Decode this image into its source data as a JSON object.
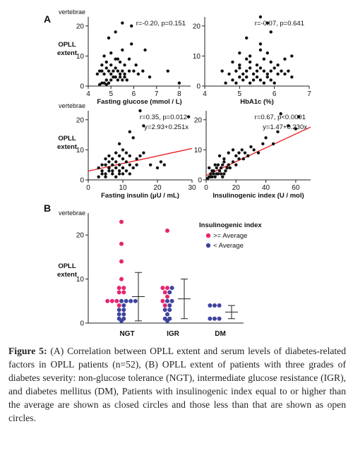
{
  "panel_a_label": "A",
  "panel_b_label": "B",
  "caption": {
    "label": "Figure 5:",
    "text": " (A) Correlation between OPLL extent and serum levels of diabetes-related factors in OPLL patients (n=52), (B) OPLL extent of patients with three grades of diabetes severity: non-glucose tolerance (NGT), intermediate glucose resistance (IGR), and diabetes mellitus (DM), Patients with insulinogenic index equal to or higher than the average are shown as closed circles and those less than that are shown as open circles."
  },
  "colors": {
    "points": "#111111",
    "fit": "#e8262a",
    "pink": "#e8246f",
    "blue": "#3f44a0",
    "axis": "#222222"
  },
  "chart_data": [
    {
      "id": "glucose",
      "type": "scatter",
      "xlabel": "Fasting glucose (mmol / L)",
      "ylabel": "OPLL extent",
      "yunit": "vertebrae",
      "stat": "r=-0.20, p=0.151",
      "xlim": [
        4,
        8.5
      ],
      "ylim": [
        0,
        23
      ],
      "xticks": [
        4,
        5,
        6,
        7,
        8
      ],
      "yticks": [
        0,
        10,
        20
      ],
      "x": [
        4.5,
        4.6,
        4.7,
        4.8,
        4.8,
        4.9,
        5.0,
        5.1,
        5.2,
        5.3,
        5.4,
        5.5,
        5.6,
        5.7,
        4.4,
        4.5,
        4.6,
        4.7,
        4.8,
        4.9,
        5.0,
        5.1,
        5.2,
        5.3,
        5.4,
        5.5,
        5.6,
        5.8,
        6.0,
        6.2,
        6.4,
        6.7,
        4.6,
        4.8,
        5.0,
        5.2,
        5.4,
        5.6,
        5.8,
        6.1,
        6.5,
        7.5,
        4.7,
        5.0,
        5.3,
        5.5,
        5.9,
        4.9,
        5.2,
        5.5,
        5.9,
        8.0
      ],
      "y": [
        0.5,
        1,
        1,
        0.5,
        2,
        1,
        2,
        3,
        3,
        2,
        3,
        2,
        3,
        2,
        4,
        5,
        5,
        4,
        6,
        5,
        4,
        5,
        6,
        5,
        4,
        5,
        4,
        5,
        5,
        4,
        5,
        3,
        7,
        8,
        7,
        9,
        8,
        7,
        9,
        7,
        12,
        5,
        10,
        11,
        9,
        12,
        14,
        16,
        18,
        21,
        20,
        1
      ]
    },
    {
      "id": "hba1c",
      "type": "scatter",
      "xlabel": "HbA1c (%)",
      "stat": "r=-0.07, p=0.641",
      "xlim": [
        4,
        7
      ],
      "ylim": [
        0,
        23
      ],
      "xticks": [
        4,
        5,
        6,
        7
      ],
      "yticks": [
        0,
        10,
        20
      ],
      "x": [
        4.6,
        4.8,
        4.9,
        5.0,
        5.1,
        5.2,
        5.3,
        5.4,
        5.5,
        5.6,
        5.7,
        5.8,
        5.9,
        6.0,
        4.5,
        4.7,
        4.9,
        5.0,
        5.1,
        5.2,
        5.3,
        5.4,
        5.5,
        5.6,
        5.7,
        5.8,
        5.9,
        6.0,
        6.1,
        6.2,
        6.3,
        6.4,
        6.5,
        4.8,
        5.0,
        5.2,
        5.3,
        5.5,
        5.7,
        5.9,
        6.1,
        6.3,
        6.5,
        5.0,
        5.3,
        5.6,
        5.8,
        5.2,
        5.6,
        5.9,
        5.6,
        5.8
      ],
      "y": [
        1,
        2,
        1,
        3,
        2,
        3,
        1,
        2,
        3,
        2,
        1,
        3,
        2,
        1,
        5,
        4,
        5,
        6,
        4,
        5,
        6,
        4,
        5,
        6,
        5,
        4,
        5,
        6,
        4,
        5,
        4,
        5,
        3,
        8,
        7,
        9,
        8,
        7,
        9,
        8,
        7,
        9,
        10,
        11,
        10,
        12,
        11,
        16,
        14,
        18,
        23,
        21
      ]
    },
    {
      "id": "insulin",
      "type": "scatter",
      "xlabel": "Fasting insulin (μU / mL)",
      "ylabel": "OPLL extent",
      "yunit": "vertebrae",
      "stat": "r=0.35, p=0.012",
      "equation": "y=2.93+0.251x",
      "fit": {
        "intercept": 2.93,
        "slope": 0.251
      },
      "xlim": [
        0,
        30
      ],
      "ylim": [
        0,
        23
      ],
      "xticks": [
        0,
        10,
        20,
        30
      ],
      "yticks": [
        0,
        10,
        20
      ],
      "x": [
        3,
        4,
        4,
        5,
        5,
        6,
        6,
        7,
        7,
        8,
        8,
        9,
        9,
        10,
        10,
        11,
        12,
        3,
        4,
        5,
        6,
        6,
        7,
        8,
        9,
        10,
        11,
        12,
        13,
        14,
        5,
        6,
        7,
        8,
        9,
        10,
        11,
        12,
        14,
        15,
        16,
        18,
        20,
        21,
        22,
        9,
        10,
        12,
        13,
        16,
        29,
        15
      ],
      "y": [
        1,
        2,
        3,
        1,
        2,
        3,
        4,
        2,
        3,
        1,
        4,
        2,
        3,
        2,
        4,
        3,
        2,
        4,
        5,
        5,
        4,
        6,
        5,
        6,
        5,
        4,
        6,
        5,
        4,
        5,
        7,
        8,
        7,
        9,
        8,
        7,
        9,
        8,
        7,
        8,
        9,
        5,
        4,
        6,
        5,
        12,
        10,
        16,
        14,
        18,
        21,
        23
      ]
    },
    {
      "id": "insulinogenic",
      "type": "scatter",
      "xlabel": "Insulinogenic index (U / mol)",
      "stat": "r=0.67, p<0.0001",
      "equation": "y=1.47+0.230x",
      "fit": {
        "intercept": 1.47,
        "slope": 0.23
      },
      "xlim": [
        0,
        70
      ],
      "ylim": [
        0,
        23
      ],
      "xticks": [
        0,
        20,
        40,
        60
      ],
      "yticks": [
        0,
        10,
        20
      ],
      "x": [
        1,
        2,
        3,
        3,
        4,
        5,
        5,
        6,
        7,
        8,
        9,
        10,
        11,
        12,
        13,
        14,
        2,
        4,
        6,
        7,
        8,
        10,
        11,
        12,
        14,
        15,
        16,
        18,
        20,
        22,
        9,
        12,
        15,
        18,
        20,
        22,
        24,
        26,
        28,
        30,
        25,
        28,
        32,
        35,
        38,
        40,
        45,
        48,
        55,
        60,
        62,
        50
      ],
      "y": [
        0.5,
        1,
        1,
        2,
        1,
        2,
        3,
        1,
        2,
        2,
        3,
        2,
        1,
        2,
        3,
        4,
        4,
        3,
        5,
        4,
        5,
        4,
        5,
        6,
        4,
        5,
        4,
        6,
        5,
        7,
        8,
        7,
        9,
        10,
        8,
        9,
        10,
        9,
        8,
        11,
        7,
        8,
        10,
        9,
        12,
        14,
        12,
        16,
        18,
        17,
        21,
        22
      ]
    },
    {
      "id": "severity",
      "type": "scatter",
      "xlabel": "",
      "ylabel": "OPLL extent",
      "yunit": "vertebrae",
      "legend_title": "Insulinogenic index",
      "legend": [
        {
          "name": ">= Average",
          "color": "#e8246f"
        },
        {
          "name": "< Average",
          "color": "#3f44a0"
        }
      ],
      "legend_position": "top-right",
      "categories": [
        "NGT",
        "IGR",
        "DM"
      ],
      "ylim": [
        0,
        25
      ],
      "yticks": [
        0,
        10,
        20
      ],
      "groups": [
        {
          "name": "NGT",
          "mean": 6,
          "sd": 5.5,
          "points": [
            {
              "y": 23,
              "hi": true
            },
            {
              "y": 18,
              "hi": true
            },
            {
              "y": 14,
              "hi": true
            },
            {
              "y": 10,
              "hi": true
            },
            {
              "y": 8,
              "hi": true
            },
            {
              "y": 8,
              "hi": true
            },
            {
              "y": 7,
              "hi": true
            },
            {
              "y": 7,
              "hi": true
            },
            {
              "y": 5,
              "hi": true
            },
            {
              "y": 5,
              "hi": true
            },
            {
              "y": 5,
              "hi": true
            },
            {
              "y": 4,
              "hi": true
            },
            {
              "y": 5,
              "hi": false
            },
            {
              "y": 5,
              "hi": false
            },
            {
              "y": 5,
              "hi": false
            },
            {
              "y": 5,
              "hi": false
            },
            {
              "y": 4,
              "hi": false
            },
            {
              "y": 3,
              "hi": false
            },
            {
              "y": 3,
              "hi": false
            },
            {
              "y": 2,
              "hi": false
            },
            {
              "y": 2,
              "hi": false
            },
            {
              "y": 1,
              "hi": false
            },
            {
              "y": 1,
              "hi": false
            },
            {
              "y": 0.5,
              "hi": false
            }
          ]
        },
        {
          "name": "IGR",
          "mean": 5.5,
          "sd": 4.5,
          "points": [
            {
              "y": 21,
              "hi": true
            },
            {
              "y": 8,
              "hi": true
            },
            {
              "y": 8,
              "hi": true
            },
            {
              "y": 7,
              "hi": true
            },
            {
              "y": 6,
              "hi": true
            },
            {
              "y": 5,
              "hi": true
            },
            {
              "y": 4,
              "hi": true
            },
            {
              "y": 8,
              "hi": false
            },
            {
              "y": 7,
              "hi": false
            },
            {
              "y": 5,
              "hi": false
            },
            {
              "y": 5,
              "hi": false
            },
            {
              "y": 4,
              "hi": false
            },
            {
              "y": 3,
              "hi": false
            },
            {
              "y": 3,
              "hi": false
            },
            {
              "y": 2,
              "hi": false
            },
            {
              "y": 1,
              "hi": false
            },
            {
              "y": 1,
              "hi": false
            },
            {
              "y": 0.5,
              "hi": false
            }
          ]
        },
        {
          "name": "DM",
          "mean": 2.5,
          "sd": 1.5,
          "points": [
            {
              "y": 4,
              "hi": false
            },
            {
              "y": 4,
              "hi": false
            },
            {
              "y": 4,
              "hi": false
            },
            {
              "y": 1,
              "hi": false
            },
            {
              "y": 1,
              "hi": false
            },
            {
              "y": 1,
              "hi": false
            }
          ]
        }
      ]
    }
  ]
}
